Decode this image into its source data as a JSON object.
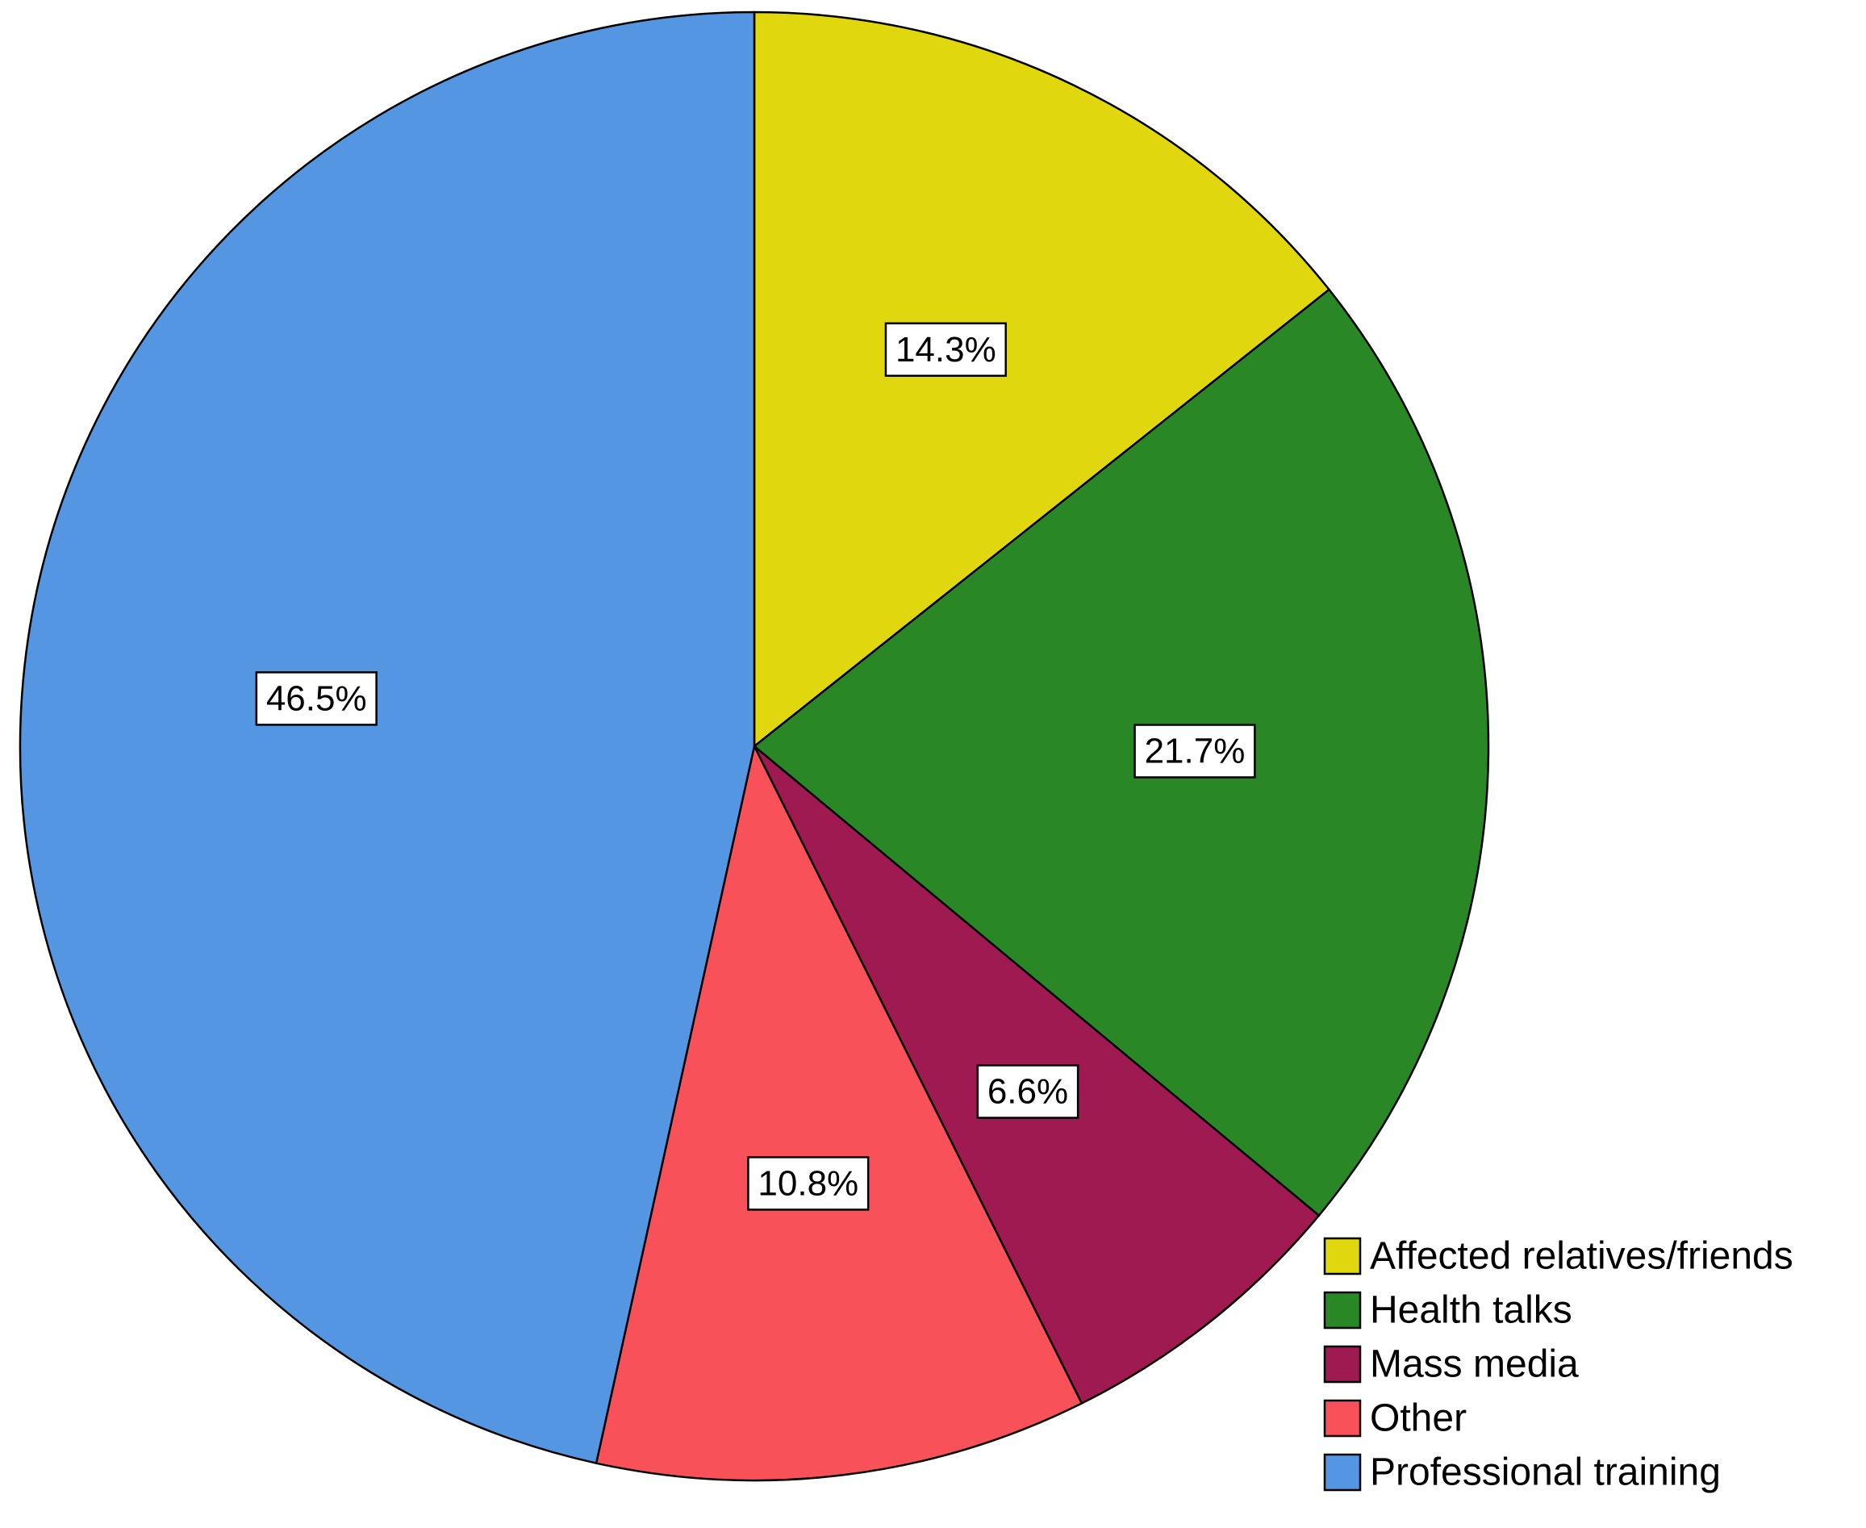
{
  "chart_data": {
    "type": "pie",
    "title": "",
    "start_angle_deg": 0,
    "direction": "clockwise",
    "slices": [
      {
        "label": "Affected relatives/friends",
        "value": 14.3,
        "value_label": "14.3%",
        "color": "#E1D70F"
      },
      {
        "label": "Health talks",
        "value": 21.7,
        "value_label": "21.7%",
        "color": "#2A8726"
      },
      {
        "label": "Mass media",
        "value": 6.6,
        "value_label": "6.6%",
        "color": "#9E1A50"
      },
      {
        "label": "Other",
        "value": 10.8,
        "value_label": "10.8%",
        "color": "#F9515A"
      },
      {
        "label": "Professional training",
        "value": 46.5,
        "value_label": "46.5%",
        "color": "#5596E3"
      }
    ],
    "legend": {
      "placement": "bottom-right",
      "entries": [
        "Affected relatives/friends",
        "Health talks",
        "Mass media",
        "Other",
        "Professional training"
      ]
    }
  }
}
